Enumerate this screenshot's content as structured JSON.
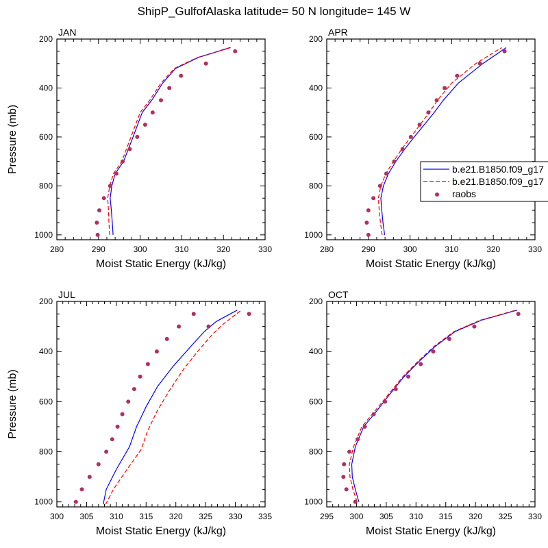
{
  "title": "ShipP_GulfofAlaska  latitude= 50 N longitude= 145 W",
  "colors": {
    "model1": "#0000ff",
    "model2": "#ff0000",
    "obs": "#b03060",
    "axis": "#000000"
  },
  "legend": {
    "entries": [
      {
        "label": "b.e21.B1850.f09_g17",
        "style": "solid",
        "color": "#0000ff"
      },
      {
        "label": "b.e21.B1850.f09_g17",
        "style": "dashed",
        "color": "#ff0000"
      },
      {
        "label": "raobs",
        "style": "marker",
        "color": "#b03060"
      }
    ]
  },
  "chart_data": [
    {
      "type": "line",
      "panel_title": "JAN",
      "xlabel": "Moist Static Energy (kJ/kg)",
      "ylabel": "Pressure (mb)",
      "xlim": [
        280,
        330
      ],
      "xticks": [
        280,
        290,
        300,
        310,
        320,
        330
      ],
      "ylim": [
        1020,
        200
      ],
      "yticks": [
        200,
        400,
        600,
        800,
        1000
      ],
      "series": [
        {
          "style": "solid",
          "color": "#0000ff",
          "x": [
            293.5,
            293.3,
            293.1,
            292.8,
            293.2,
            294.0,
            296.0,
            298.3,
            300.5,
            302.8,
            305.4,
            308.5,
            314.0,
            321.7
          ],
          "y": [
            1000,
            950,
            900,
            850,
            800,
            750,
            700,
            600,
            500,
            450,
            380,
            320,
            275,
            235
          ]
        },
        {
          "style": "dashed",
          "color": "#ff0000",
          "x": [
            292.7,
            292.5,
            292.4,
            292.2,
            292.7,
            293.6,
            295.6,
            297.8,
            300.0,
            302.3,
            305.0,
            308.2,
            313.8,
            321.5
          ],
          "y": [
            1000,
            950,
            900,
            850,
            800,
            750,
            700,
            600,
            500,
            450,
            380,
            320,
            275,
            235
          ]
        },
        {
          "style": "marker",
          "color": "#b03060",
          "x": [
            289.8,
            289.6,
            290.2,
            291.3,
            292.8,
            294.3,
            295.8,
            297.5,
            299.3,
            301.2,
            303.0,
            305.0,
            307.0,
            309.8,
            315.8,
            322.8
          ],
          "y": [
            1000,
            950,
            900,
            850,
            800,
            750,
            700,
            650,
            600,
            550,
            500,
            450,
            400,
            350,
            300,
            250
          ]
        }
      ]
    },
    {
      "type": "line",
      "panel_title": "APR",
      "xlabel": "Moist Static Energy (kJ/kg)",
      "ylabel": "",
      "xlim": [
        280,
        330
      ],
      "xticks": [
        280,
        290,
        300,
        310,
        320,
        330
      ],
      "ylim": [
        1020,
        200
      ],
      "yticks": [
        200,
        400,
        600,
        800,
        1000
      ],
      "series": [
        {
          "style": "solid",
          "color": "#0000ff",
          "x": [
            293.9,
            293.5,
            293.2,
            293.0,
            293.6,
            294.8,
            296.6,
            298.7,
            301.0,
            303.4,
            305.8,
            308.0,
            311.6,
            317.5,
            323.1
          ],
          "y": [
            1000,
            950,
            900,
            850,
            800,
            750,
            700,
            650,
            600,
            550,
            500,
            450,
            380,
            300,
            235
          ]
        },
        {
          "style": "dashed",
          "color": "#ff0000",
          "x": [
            293.3,
            292.9,
            292.6,
            292.4,
            293.0,
            294.2,
            296.0,
            298.0,
            300.2,
            302.4,
            304.6,
            306.6,
            310.0,
            315.8,
            322.0
          ],
          "y": [
            1000,
            950,
            900,
            850,
            800,
            750,
            700,
            650,
            600,
            550,
            500,
            450,
            380,
            300,
            235
          ]
        },
        {
          "style": "marker",
          "color": "#b03060",
          "x": [
            290.0,
            289.6,
            290.0,
            291.2,
            292.8,
            294.3,
            296.2,
            298.2,
            300.2,
            302.3,
            304.4,
            306.4,
            308.3,
            311.3,
            316.8,
            322.7
          ],
          "y": [
            1000,
            950,
            900,
            850,
            800,
            750,
            700,
            650,
            600,
            550,
            500,
            450,
            400,
            350,
            300,
            250
          ]
        }
      ]
    },
    {
      "type": "line",
      "panel_title": "JUL",
      "xlabel": "Moist Static Energy (kJ/kg)",
      "ylabel": "Pressure (mb)",
      "xlim": [
        300,
        335
      ],
      "xticks": [
        300,
        305,
        310,
        315,
        320,
        325,
        330,
        335
      ],
      "ylim": [
        1020,
        200
      ],
      "yticks": [
        200,
        400,
        600,
        800,
        1000
      ],
      "series": [
        {
          "style": "solid",
          "color": "#0000ff",
          "x": [
            307.8,
            308.3,
            310.0,
            312.2,
            313.4,
            315.0,
            316.9,
            319.5,
            322.5,
            324.8,
            326.8,
            330.3
          ],
          "y": [
            1010,
            950,
            870,
            780,
            700,
            620,
            540,
            460,
            380,
            320,
            280,
            235
          ]
        },
        {
          "style": "dashed",
          "color": "#ff0000",
          "x": [
            308.2,
            309.5,
            311.8,
            314.2,
            315.2,
            316.8,
            318.8,
            321.3,
            324.0,
            326.2,
            328.0,
            331.0
          ],
          "y": [
            1010,
            950,
            870,
            790,
            720,
            640,
            560,
            470,
            390,
            330,
            290,
            235
          ]
        },
        {
          "style": "marker",
          "color": "#b03060",
          "x": [
            303.2,
            304.2,
            305.5,
            307.0,
            308.3,
            309.3,
            310.2,
            311.0,
            312.0,
            313.0,
            314.0,
            315.3,
            316.8,
            318.5,
            320.5,
            323.0,
            325.5,
            332.3
          ],
          "y": [
            1000,
            950,
            900,
            850,
            800,
            750,
            700,
            650,
            600,
            550,
            500,
            450,
            400,
            350,
            300,
            250,
            300,
            250
          ]
        }
      ]
    },
    {
      "type": "line",
      "panel_title": "OCT",
      "xlabel": "Moist Static Energy (kJ/kg)",
      "ylabel": "",
      "xlim": [
        295,
        330
      ],
      "xticks": [
        295,
        300,
        305,
        310,
        315,
        320,
        325,
        330
      ],
      "ylim": [
        1020,
        200
      ],
      "yticks": [
        200,
        400,
        600,
        800,
        1000
      ],
      "series": [
        {
          "style": "solid",
          "color": "#0000ff",
          "x": [
            300.4,
            299.8,
            299.3,
            299.2,
            299.8,
            301.2,
            303.3,
            305.6,
            308.0,
            310.5,
            313.2,
            316.6,
            321.0,
            327.0
          ],
          "y": [
            1000,
            950,
            900,
            850,
            780,
            700,
            640,
            570,
            500,
            440,
            380,
            320,
            275,
            235
          ]
        },
        {
          "style": "dashed",
          "color": "#ff0000",
          "x": [
            300.1,
            299.4,
            298.9,
            298.8,
            299.5,
            300.9,
            303.0,
            305.4,
            307.8,
            310.3,
            313.0,
            316.4,
            320.8,
            326.8
          ],
          "y": [
            1000,
            950,
            900,
            850,
            780,
            700,
            640,
            570,
            500,
            440,
            380,
            320,
            275,
            235
          ]
        },
        {
          "style": "marker",
          "color": "#b03060",
          "x": [
            299.8,
            298.3,
            297.8,
            297.9,
            298.8,
            300.2,
            301.4,
            302.9,
            304.8,
            306.6,
            308.7,
            310.8,
            312.9,
            315.6,
            319.8,
            327.2
          ],
          "y": [
            1000,
            950,
            900,
            850,
            800,
            750,
            700,
            650,
            600,
            550,
            500,
            450,
            400,
            350,
            300,
            250
          ]
        }
      ]
    }
  ]
}
